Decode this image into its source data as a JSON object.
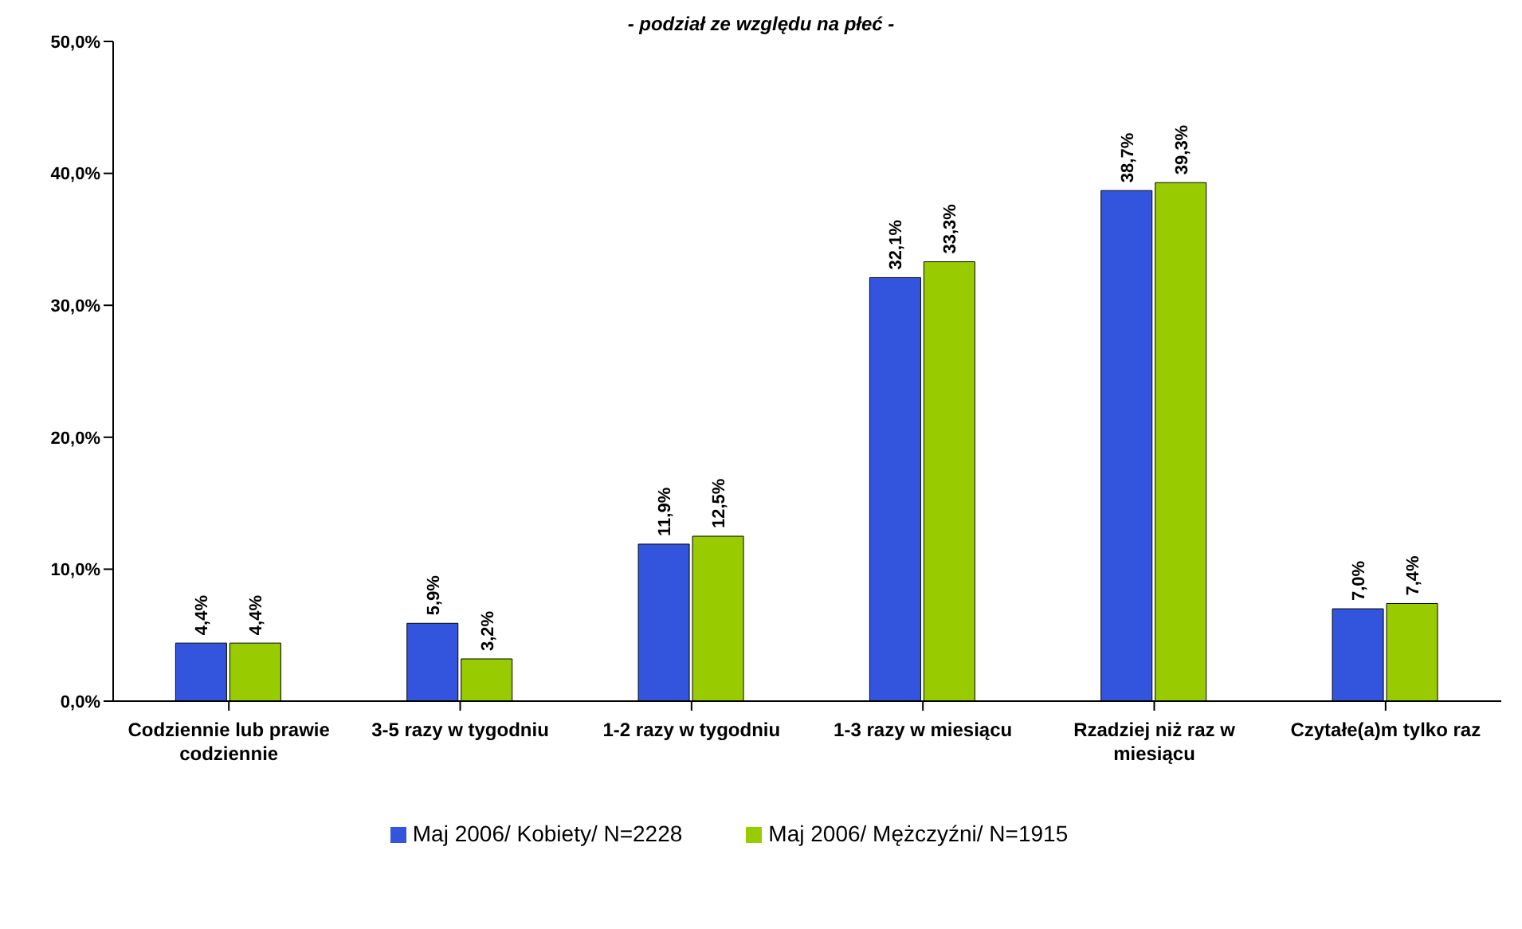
{
  "chart_data": {
    "type": "bar",
    "title": "- podział ze względu na płeć -",
    "categories": [
      "Codziennie lub prawie codziennie",
      "3-5 razy w tygodniu",
      "1-2 razy w tygodniu",
      "1-3 razy w miesiącu",
      "Rzadziej niż raz w miesiącu",
      "Czytałe(a)m tylko raz"
    ],
    "series": [
      {
        "name": "Maj 2006/ Kobiety/ N=2228",
        "color": "#3355dd",
        "values": [
          4.4,
          5.9,
          11.9,
          32.1,
          38.7,
          7.0
        ],
        "value_labels": [
          "4,4%",
          "5,9%",
          "11,9%",
          "32,1%",
          "38,7%",
          "7,0%"
        ]
      },
      {
        "name": "Maj 2006/ Mężczyźni/ N=1915",
        "color": "#99cc00",
        "values": [
          4.4,
          3.2,
          12.5,
          33.3,
          39.3,
          7.4
        ],
        "value_labels": [
          "4,4%",
          "3,2%",
          "12,5%",
          "33,3%",
          "39,3%",
          "7,4%"
        ]
      }
    ],
    "ylim": [
      0,
      50
    ],
    "yticks": [
      {
        "value": 0,
        "label": "0,0%"
      },
      {
        "value": 10,
        "label": "10,0%"
      },
      {
        "value": 20,
        "label": "20,0%"
      },
      {
        "value": 30,
        "label": "30,0%"
      },
      {
        "value": 40,
        "label": "40,0%"
      },
      {
        "value": 50,
        "label": "50,0%"
      }
    ],
    "grid": false,
    "legend": "bottom"
  }
}
